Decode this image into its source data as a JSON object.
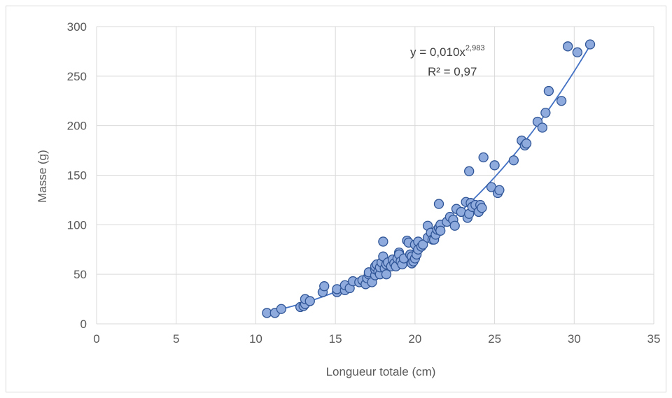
{
  "chart_data": {
    "type": "scatter",
    "xlabel": "Longueur totale (cm)",
    "ylabel": "Masse (g)",
    "xlim": [
      0,
      35
    ],
    "ylim": [
      0,
      300
    ],
    "x_ticks": [
      "0",
      "5",
      "10",
      "15",
      "20",
      "25",
      "30",
      "35"
    ],
    "y_ticks": [
      "0",
      "50",
      "100",
      "150",
      "200",
      "250",
      "300"
    ],
    "grid": true,
    "legend": "none",
    "marker_color": "#8faadc",
    "marker_edge_color": "#2f5597",
    "trendline": {
      "type": "power",
      "coefficient": 0.01,
      "exponent": 2.983,
      "color": "#4472c4",
      "x_range": [
        10.6,
        31.0
      ],
      "equation_prefix": "y = 0,010x",
      "equation_exponent": "2,983",
      "r2_label": "R² = 0,97"
    },
    "points": [
      [
        10.7,
        11
      ],
      [
        11.2,
        11
      ],
      [
        11.6,
        15
      ],
      [
        12.8,
        17
      ],
      [
        13.0,
        18
      ],
      [
        13.1,
        20
      ],
      [
        13.1,
        25
      ],
      [
        13.4,
        23
      ],
      [
        14.2,
        32
      ],
      [
        14.3,
        38
      ],
      [
        15.1,
        32
      ],
      [
        15.1,
        35
      ],
      [
        15.6,
        34
      ],
      [
        15.6,
        39
      ],
      [
        15.9,
        36
      ],
      [
        16.1,
        43
      ],
      [
        16.5,
        42
      ],
      [
        16.7,
        44
      ],
      [
        16.9,
        40
      ],
      [
        17.0,
        46
      ],
      [
        17.1,
        50
      ],
      [
        17.1,
        52
      ],
      [
        17.3,
        42
      ],
      [
        17.5,
        49
      ],
      [
        17.5,
        55
      ],
      [
        17.5,
        58
      ],
      [
        17.6,
        60
      ],
      [
        17.7,
        53
      ],
      [
        17.8,
        50
      ],
      [
        17.8,
        57
      ],
      [
        17.9,
        62
      ],
      [
        18.0,
        83
      ],
      [
        18.0,
        68
      ],
      [
        18.1,
        56
      ],
      [
        18.2,
        50
      ],
      [
        18.2,
        60
      ],
      [
        18.3,
        62
      ],
      [
        18.5,
        58
      ],
      [
        18.6,
        65
      ],
      [
        18.7,
        61
      ],
      [
        18.8,
        58
      ],
      [
        18.9,
        66
      ],
      [
        19.0,
        72
      ],
      [
        19.0,
        70
      ],
      [
        19.1,
        63
      ],
      [
        19.2,
        60
      ],
      [
        19.3,
        66
      ],
      [
        19.5,
        84
      ],
      [
        19.6,
        82
      ],
      [
        19.7,
        70
      ],
      [
        19.8,
        61
      ],
      [
        19.8,
        68
      ],
      [
        19.9,
        63
      ],
      [
        20.0,
        66
      ],
      [
        20.0,
        80
      ],
      [
        20.1,
        70
      ],
      [
        20.2,
        75
      ],
      [
        20.2,
        83
      ],
      [
        20.4,
        78
      ],
      [
        20.5,
        80
      ],
      [
        20.8,
        99
      ],
      [
        20.8,
        87
      ],
      [
        21.0,
        92
      ],
      [
        21.1,
        85
      ],
      [
        21.2,
        85
      ],
      [
        21.3,
        90
      ],
      [
        21.4,
        95
      ],
      [
        21.5,
        121
      ],
      [
        21.5,
        97
      ],
      [
        21.6,
        100
      ],
      [
        21.6,
        94
      ],
      [
        22.0,
        103
      ],
      [
        22.2,
        108
      ],
      [
        22.4,
        105
      ],
      [
        22.5,
        99
      ],
      [
        22.6,
        116
      ],
      [
        22.9,
        113
      ],
      [
        23.2,
        123
      ],
      [
        23.3,
        107
      ],
      [
        23.4,
        154
      ],
      [
        23.4,
        111
      ],
      [
        23.5,
        122
      ],
      [
        23.6,
        118
      ],
      [
        23.8,
        120
      ],
      [
        24.0,
        113
      ],
      [
        24.1,
        120
      ],
      [
        24.2,
        117
      ],
      [
        24.3,
        168
      ],
      [
        24.8,
        138
      ],
      [
        25.0,
        160
      ],
      [
        25.2,
        132
      ],
      [
        25.3,
        135
      ],
      [
        26.2,
        165
      ],
      [
        26.7,
        185
      ],
      [
        26.9,
        180
      ],
      [
        27.0,
        182
      ],
      [
        27.7,
        204
      ],
      [
        28.0,
        198
      ],
      [
        28.2,
        213
      ],
      [
        28.4,
        235
      ],
      [
        29.2,
        225
      ],
      [
        29.6,
        280
      ],
      [
        30.2,
        274
      ],
      [
        31.0,
        282
      ]
    ]
  }
}
